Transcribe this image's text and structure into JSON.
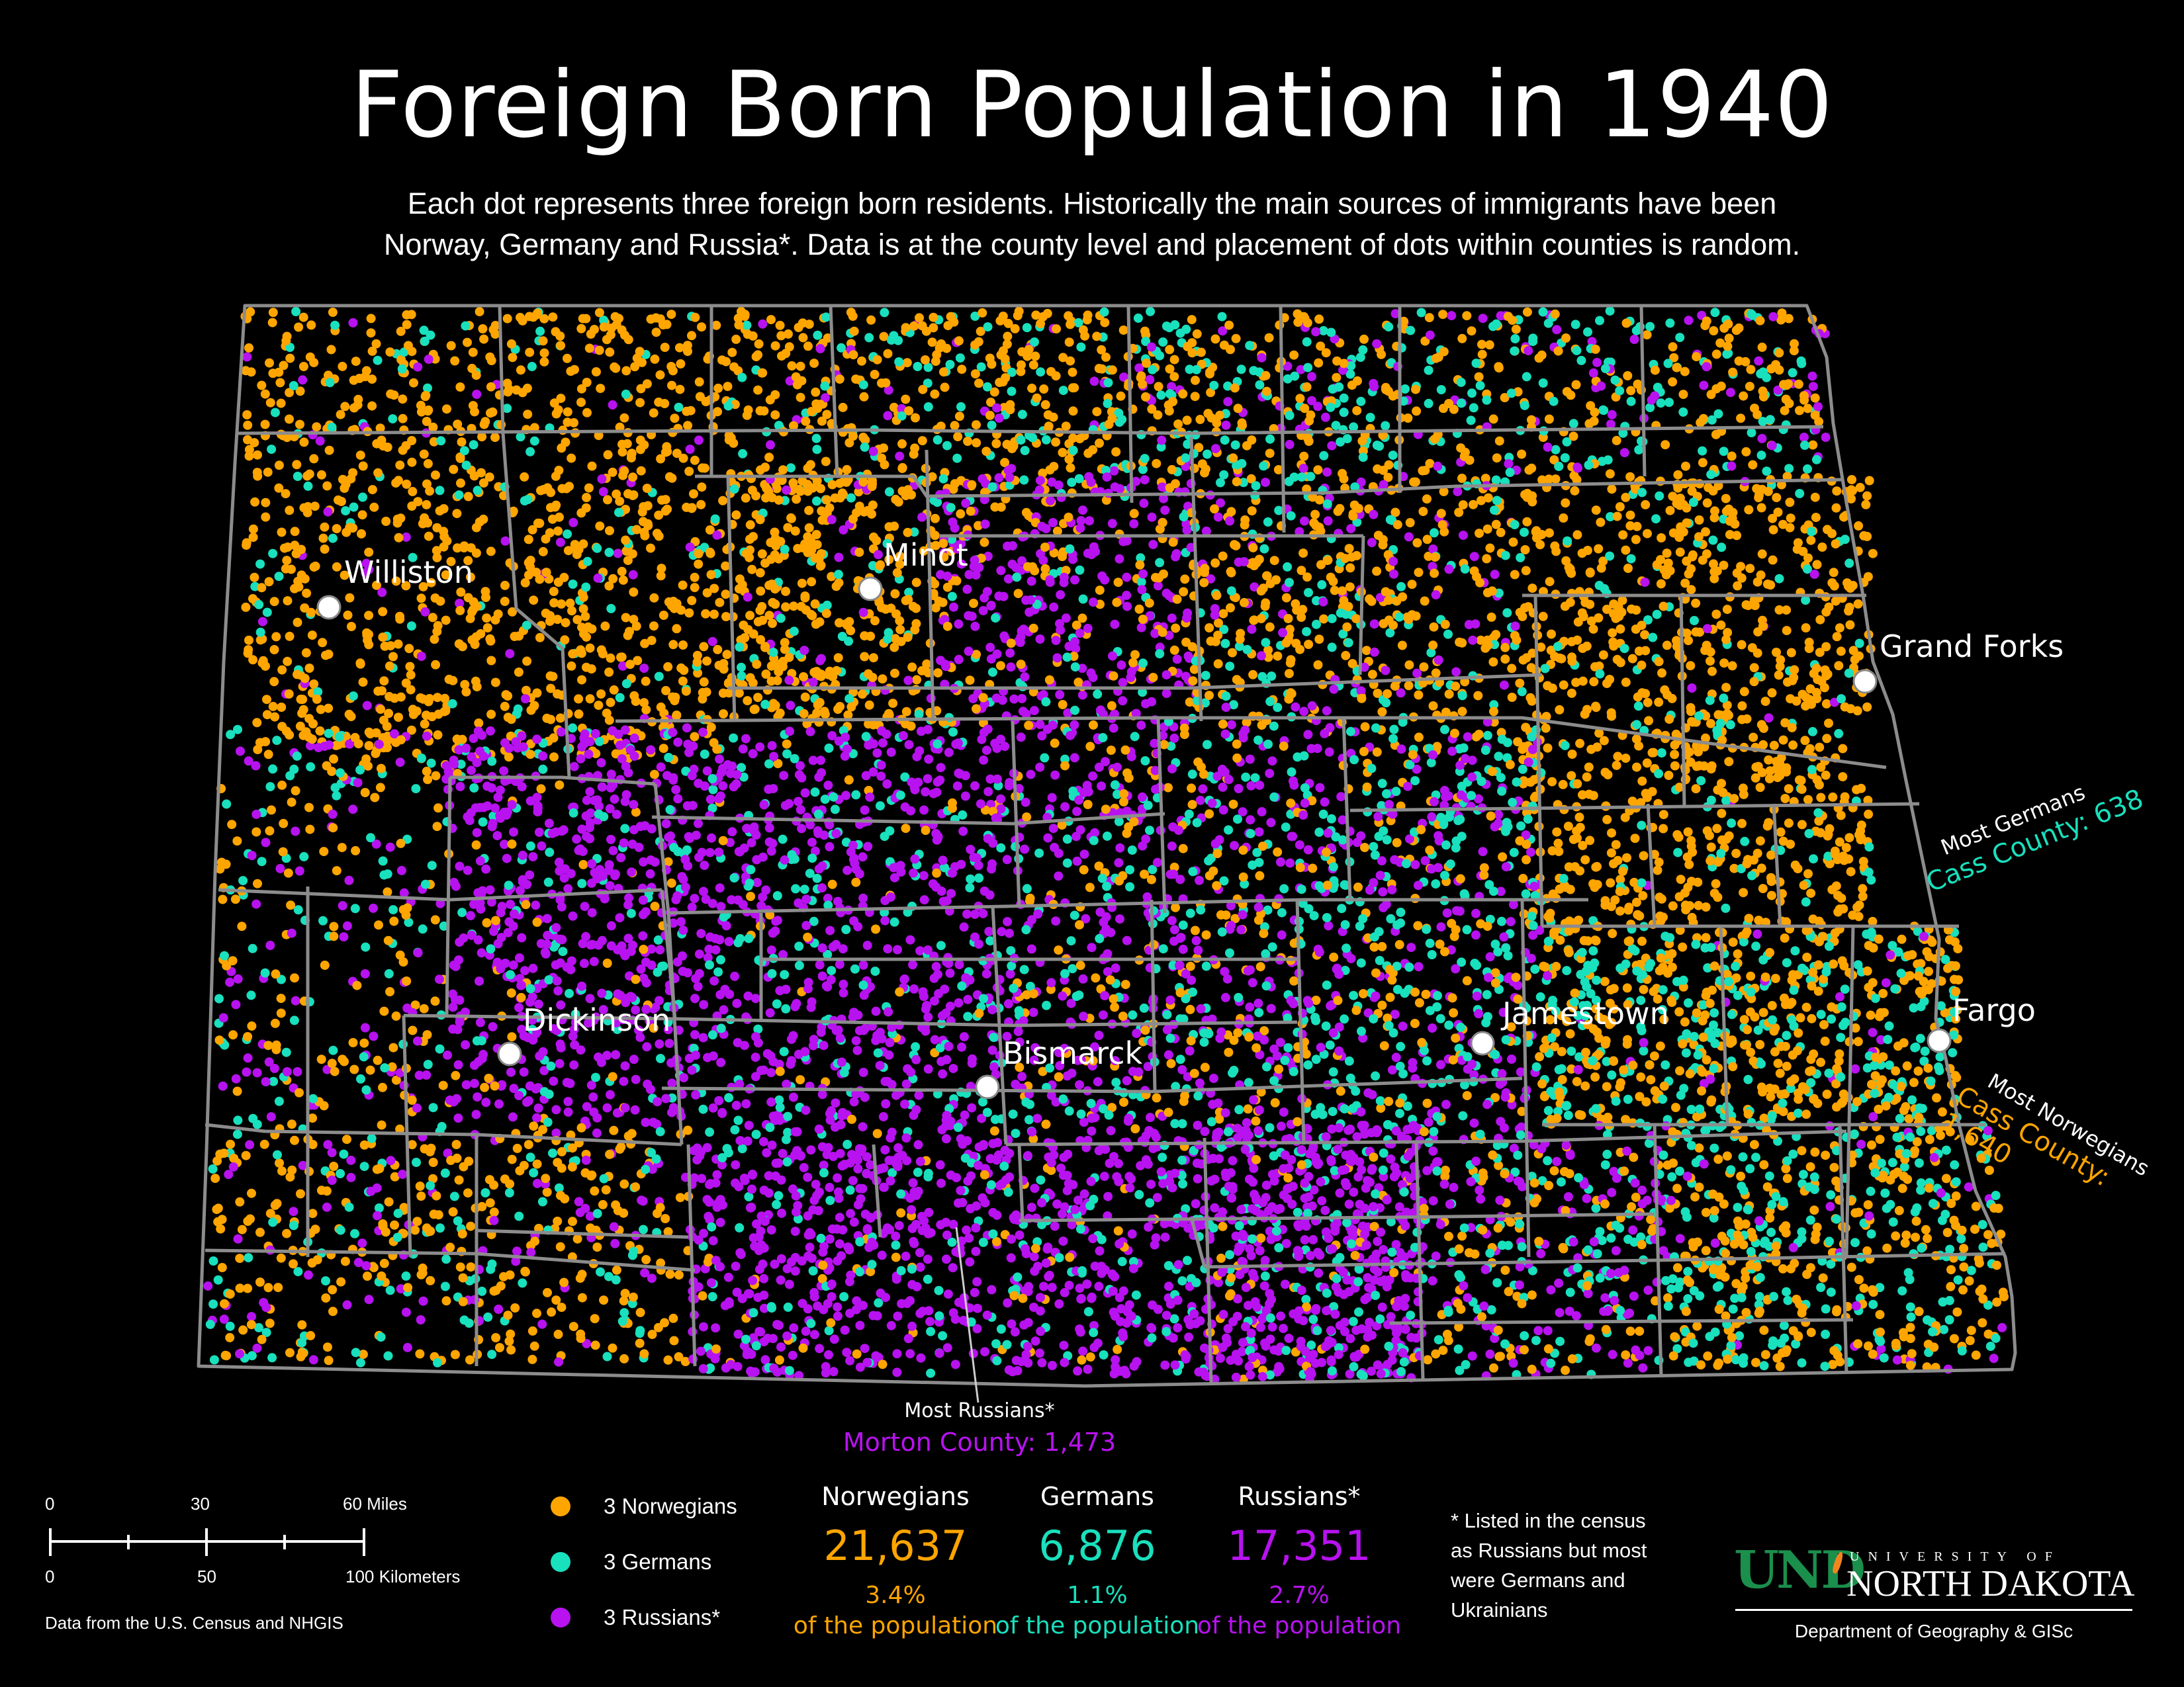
{
  "title": "Foreign Born Population in 1940",
  "subtitle_line1": "Each dot represents three foreign born residents. Historically the main sources of immigrants have been",
  "subtitle_line2": "Norway, Germany and Russia*. Data is at the county level and placement of dots within counties is random.",
  "colors": {
    "norwegians": "#ffa500",
    "germans": "#19e0bd",
    "russians": "#b812f0",
    "county_lines": "#8c8c8c",
    "background": "#000000"
  },
  "cities": [
    {
      "name": "Williston"
    },
    {
      "name": "Minot"
    },
    {
      "name": "Grand Forks"
    },
    {
      "name": "Dickinson"
    },
    {
      "name": "Bismarck"
    },
    {
      "name": "Jamestown"
    },
    {
      "name": "Fargo"
    }
  ],
  "callouts": {
    "germans_heading": "Most Germans",
    "germans_value": "Cass County: 638",
    "norwegians_heading": "Most Norwegians",
    "norwegians_value": "Cass County: 1,640",
    "russians_heading": "Most Russians*",
    "russians_value": "Morton County: 1,473"
  },
  "legend": {
    "norwegians": "3 Norwegians",
    "germans": "3 Germans",
    "russians": "3 Russians*"
  },
  "stats": {
    "norwegians": {
      "label": "Norwegians",
      "count": "21,637",
      "percent": "3.4%",
      "of_pop": "of the population"
    },
    "germans": {
      "label": "Germans",
      "count": "6,876",
      "percent": "1.1%",
      "of_pop": "of the population"
    },
    "russians": {
      "label": "Russians*",
      "count": "17,351",
      "percent": "2.7%",
      "of_pop": "of the population"
    }
  },
  "footnote": {
    "line1": "* Listed in the census",
    "line2": "as Russians but most",
    "line3": "were Germans and",
    "line4": "Ukrainians"
  },
  "scale": {
    "miles_ticks": [
      "0",
      "30",
      "60 Miles"
    ],
    "km_ticks": [
      "0",
      "50",
      "100 Kilometers"
    ]
  },
  "source": "Data from the U.S. Census and NHGIS",
  "logo": {
    "mark": "UND",
    "university_of": "UNIVERSITY OF",
    "name": "NORTH DAKOTA",
    "department": "Department of Geography & GISc"
  }
}
